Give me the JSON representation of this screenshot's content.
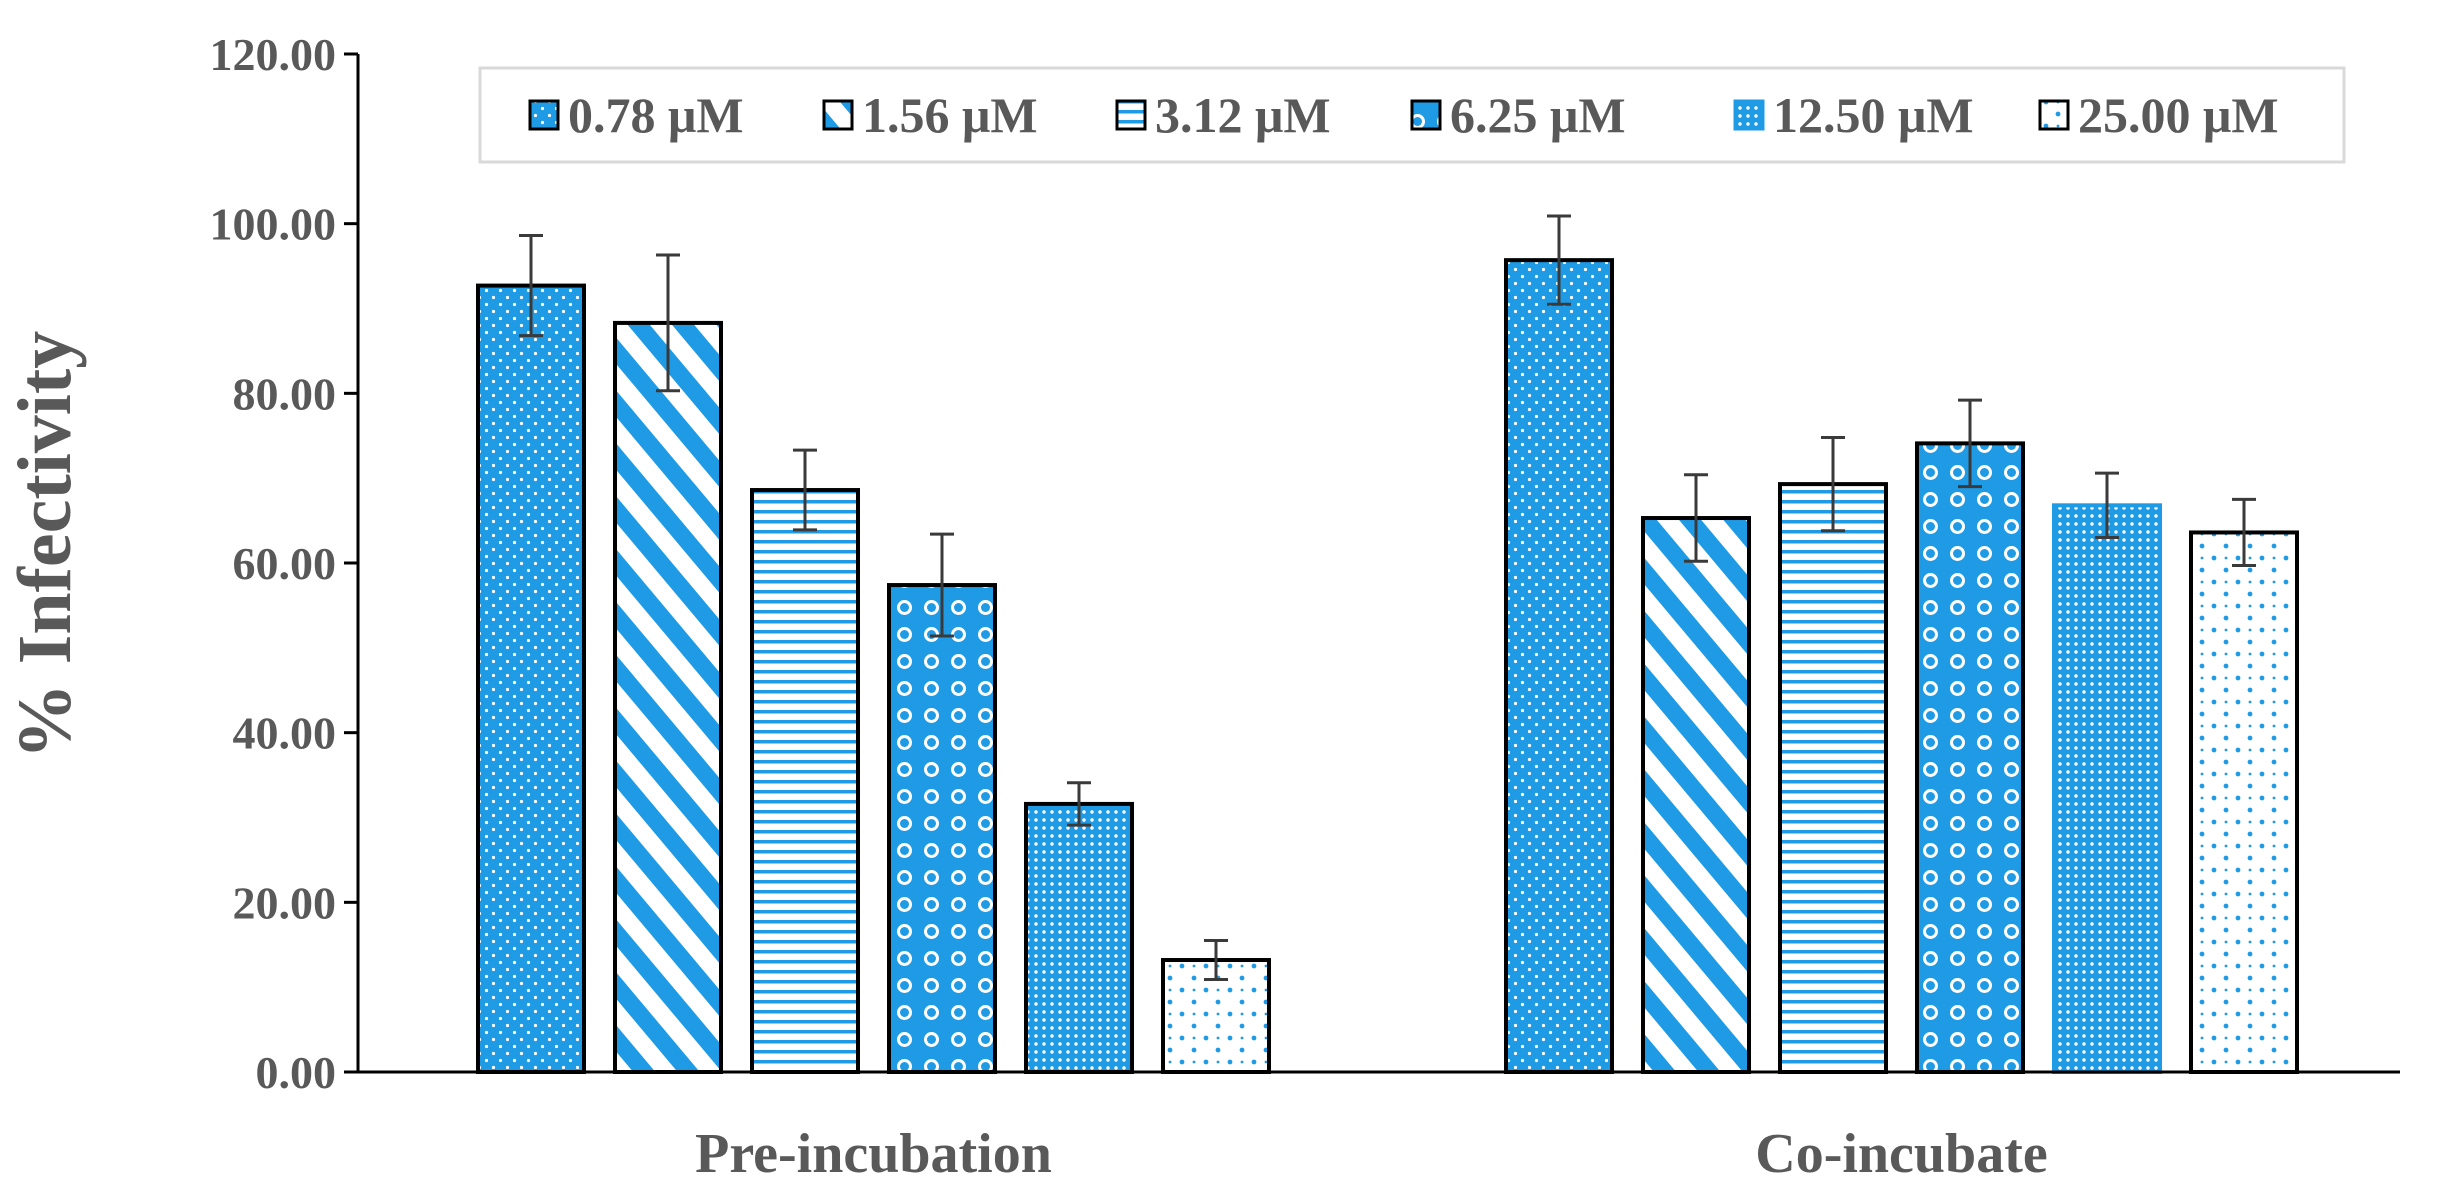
{
  "chart_data": {
    "type": "bar",
    "title": "",
    "xlabel": "",
    "ylabel": "% Infectivity",
    "ylim": [
      0,
      120
    ],
    "yticks": [
      0,
      20,
      40,
      60,
      80,
      100,
      120
    ],
    "ytick_labels": [
      "0.00",
      "20.00",
      "40.00",
      "60.00",
      "80.00",
      "100.00",
      "120.00"
    ],
    "categories": [
      "Pre-incubation",
      "Co-incubate"
    ],
    "legend_position": "top",
    "colors": {
      "bar_fill": "#1f9be6",
      "bar_outline": "#000000",
      "error_bar": "#3a3a3a",
      "axis": "#000000",
      "text": "#595959"
    },
    "series": [
      {
        "name": "0.78 μM",
        "pattern": "dots-dense",
        "values": [
          92.7,
          95.7
        ],
        "errors": [
          5.9,
          5.2
        ]
      },
      {
        "name": "1.56 μM",
        "pattern": "diagonal",
        "values": [
          88.3,
          65.3
        ],
        "errors": [
          8.0,
          5.1
        ]
      },
      {
        "name": "3.12 μM",
        "pattern": "horizontal",
        "values": [
          68.6,
          69.3
        ],
        "errors": [
          4.7,
          5.5
        ]
      },
      {
        "name": "6.25 μM",
        "pattern": "circles",
        "values": [
          57.4,
          74.1
        ],
        "errors": [
          6.0,
          5.1
        ]
      },
      {
        "name": "12.50 μM",
        "pattern": "grid-dots",
        "values": [
          31.6,
          66.8
        ],
        "errors": [
          2.5,
          3.8
        ]
      },
      {
        "name": "25.00 μM",
        "pattern": "sparse-dots",
        "values": [
          13.2,
          63.6
        ],
        "errors": [
          2.3,
          3.9
        ]
      }
    ]
  }
}
